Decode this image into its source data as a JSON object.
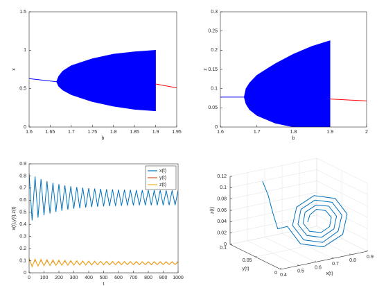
{
  "chart_data": [
    {
      "type": "bifurcation",
      "xlabel": "b",
      "ylabel": "x",
      "xlim": [
        1.6,
        1.95
      ],
      "ylim": [
        0,
        1.5
      ],
      "xticks": [
        1.6,
        1.65,
        1.7,
        1.75,
        1.8,
        1.85,
        1.9,
        1.95
      ],
      "yticks": [
        0,
        0.5,
        1,
        1.5
      ],
      "series": [
        {
          "color": "#0000ff",
          "x": [
            1.6,
            1.665
          ],
          "values": [
            0.63,
            0.59
          ]
        },
        {
          "color": "#0000ff",
          "x": [
            1.665,
            1.67,
            1.68,
            1.7,
            1.75,
            1.8,
            1.85,
            1.9
          ],
          "upper": [
            0.59,
            0.66,
            0.73,
            0.8,
            0.89,
            0.95,
            0.98,
            1.0
          ],
          "lower": [
            0.59,
            0.53,
            0.48,
            0.42,
            0.33,
            0.27,
            0.23,
            0.21
          ]
        },
        {
          "color": "#ff0000",
          "x": [
            1.9,
            1.95
          ],
          "values": [
            0.56,
            0.51
          ]
        }
      ]
    },
    {
      "type": "bifurcation",
      "xlabel": "b",
      "ylabel": "z",
      "xlim": [
        1.6,
        2
      ],
      "ylim": [
        0,
        0.3
      ],
      "xticks": [
        1.6,
        1.7,
        1.8,
        1.9,
        2
      ],
      "yticks": [
        0,
        0.05,
        0.1,
        0.15,
        0.2,
        0.25,
        0.3
      ],
      "series": [
        {
          "color": "#0000ff",
          "x": [
            1.6,
            1.665
          ],
          "values": [
            0.078,
            0.078
          ]
        },
        {
          "color": "#0000ff",
          "x": [
            1.665,
            1.67,
            1.68,
            1.7,
            1.75,
            1.8,
            1.85,
            1.9
          ],
          "upper": [
            0.078,
            0.1,
            0.115,
            0.135,
            0.165,
            0.19,
            0.21,
            0.225
          ],
          "lower": [
            0.078,
            0.06,
            0.045,
            0.03,
            0.01,
            0,
            0,
            0
          ]
        },
        {
          "color": "#ff0000",
          "x": [
            1.9,
            2
          ],
          "values": [
            0.073,
            0.068
          ]
        }
      ]
    },
    {
      "type": "line",
      "xlabel": "t",
      "ylabel": "x(t),y(t),z(t)",
      "legend": "upper right",
      "xlim": [
        0,
        1000
      ],
      "ylim": [
        0,
        0.9
      ],
      "xticks": [
        0,
        100,
        200,
        300,
        400,
        500,
        600,
        700,
        800,
        900,
        1000
      ],
      "yticks": [
        0,
        0.1,
        0.2,
        0.3,
        0.4,
        0.5,
        0.6,
        0.7,
        0.8,
        0.9
      ],
      "x": [
        0,
        20,
        40,
        60,
        80,
        100,
        120,
        140,
        160,
        180,
        200,
        220,
        240,
        260,
        280,
        300,
        320,
        340,
        360,
        380,
        400,
        420,
        440,
        460,
        480,
        500,
        520,
        540,
        560,
        580,
        600,
        620,
        640,
        660,
        680,
        700,
        720,
        740,
        760,
        780,
        800,
        820,
        840,
        860,
        880,
        900,
        920,
        940,
        960,
        980,
        1000
      ],
      "series": [
        {
          "name": "x(t)",
          "color": "#0072bd",
          "values": [
            0.82,
            0.433,
            0.795,
            0.456,
            0.774,
            0.475,
            0.757,
            0.49,
            0.743,
            0.503,
            0.732,
            0.513,
            0.722,
            0.522,
            0.715,
            0.529,
            0.708,
            0.534,
            0.703,
            0.539,
            0.699,
            0.543,
            0.696,
            0.546,
            0.693,
            0.549,
            0.69,
            0.551,
            0.689,
            0.552,
            0.687,
            0.554,
            0.686,
            0.555,
            0.685,
            0.556,
            0.684,
            0.557,
            0.683,
            0.557,
            0.683,
            0.558,
            0.682,
            0.558,
            0.682,
            0.558,
            0.681,
            0.559,
            0.681,
            0.559,
            0.681
          ]
        },
        {
          "name": "y(t)",
          "color": "#d95319",
          "values": [
            0.11,
            0.055,
            0.108,
            0.058,
            0.105,
            0.06,
            0.103,
            0.061,
            0.101,
            0.062,
            0.1,
            0.063,
            0.099,
            0.063,
            0.098,
            0.064,
            0.097,
            0.064,
            0.096,
            0.065,
            0.095,
            0.065,
            0.094,
            0.066,
            0.094,
            0.066,
            0.093,
            0.066,
            0.093,
            0.066,
            0.092,
            0.067,
            0.092,
            0.067,
            0.092,
            0.067,
            0.091,
            0.067,
            0.091,
            0.067,
            0.091,
            0.067,
            0.091,
            0.068,
            0.09,
            0.068,
            0.09,
            0.068,
            0.09,
            0.068,
            0.09
          ]
        },
        {
          "name": "z(t)",
          "color": "#edb120",
          "values": [
            0.12,
            0.05,
            0.115,
            0.055,
            0.112,
            0.058,
            0.11,
            0.06,
            0.108,
            0.061,
            0.106,
            0.062,
            0.104,
            0.063,
            0.102,
            0.064,
            0.1,
            0.065,
            0.099,
            0.065,
            0.098,
            0.066,
            0.097,
            0.066,
            0.096,
            0.067,
            0.096,
            0.067,
            0.095,
            0.067,
            0.095,
            0.068,
            0.094,
            0.068,
            0.094,
            0.068,
            0.094,
            0.068,
            0.093,
            0.068,
            0.093,
            0.069,
            0.093,
            0.069,
            0.093,
            0.069,
            0.093,
            0.069,
            0.093,
            0.069,
            0.093
          ]
        }
      ]
    },
    {
      "type": "line3d",
      "xlabel": "x(t)",
      "ylabel": "y(t)",
      "zlabel": "z(t)",
      "xlim": [
        0.4,
        0.9
      ],
      "ylim": [
        0,
        0.1
      ],
      "zlim": [
        0,
        0.12
      ],
      "xticks": [
        0.4,
        0.5,
        0.6,
        0.7,
        0.8,
        0.9
      ],
      "yticks": [
        0,
        0.05,
        0.1
      ],
      "zticks": [
        0,
        0.02,
        0.04,
        0.06,
        0.08,
        0.1,
        0.12
      ],
      "grid": true,
      "series": [
        {
          "color": "#0072bd",
          "x": [
            0.5,
            0.515,
            0.525,
            0.535,
            0.57,
            0.625,
            0.75,
            0.869,
            0.915,
            0.864,
            0.75,
            0.641,
            0.6,
            0.647,
            0.75,
            0.848,
            0.885,
            0.843,
            0.75,
            0.663,
            0.631,
            0.668,
            0.75,
            0.827,
            0.854,
            0.821,
            0.75,
            0.684,
            0.661,
            0.69,
            0.75,
            0.805,
            0.824,
            0.8,
            0.75,
            0.706,
            0.687
          ],
          "y": [
            0.07,
            0.064,
            0.058,
            0.052,
            0.045,
            0.038,
            0.035,
            0.038,
            0.045,
            0.051,
            0.054,
            0.051,
            0.045,
            0.039,
            0.037,
            0.04,
            0.045,
            0.05,
            0.052,
            0.05,
            0.045,
            0.04,
            0.039,
            0.041,
            0.045,
            0.049,
            0.05,
            0.049,
            0.045,
            0.042,
            0.04,
            0.042,
            0.045,
            0.048,
            0.049,
            0.047,
            0.045
          ],
          "z": [
            0.118,
            0.095,
            0.065,
            0.04,
            0.045,
            0.014,
            0.002,
            0.015,
            0.045,
            0.073,
            0.084,
            0.072,
            0.045,
            0.019,
            0.009,
            0.021,
            0.045,
            0.068,
            0.077,
            0.067,
            0.045,
            0.025,
            0.017,
            0.026,
            0.045,
            0.063,
            0.069,
            0.061,
            0.045,
            0.03,
            0.025,
            0.031,
            0.045,
            0.057,
            0.062,
            0.056,
            0.045
          ]
        }
      ]
    }
  ]
}
